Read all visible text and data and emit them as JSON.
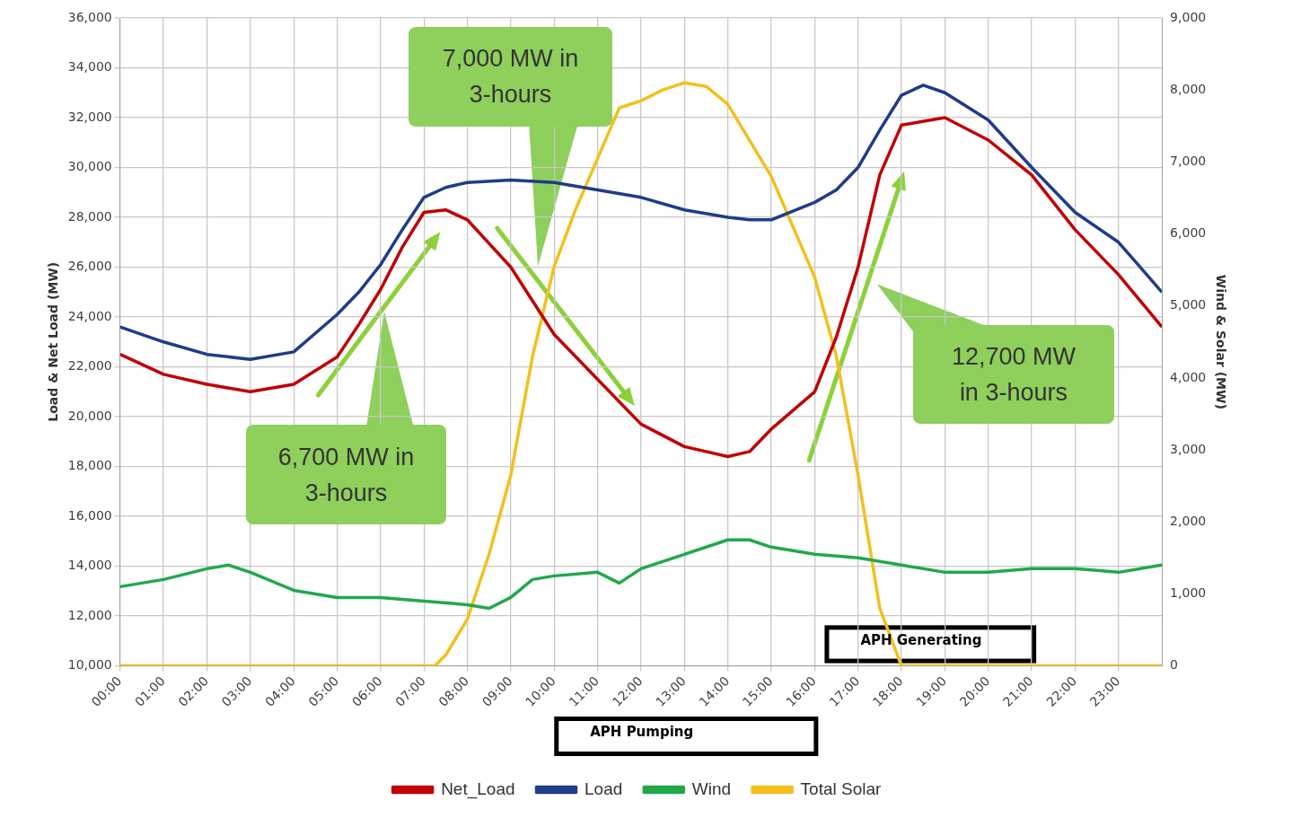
{
  "chart_data": {
    "type": "line",
    "ylabel": "Load & Net Load (MW)",
    "y2label": "Wind & Solar (MW)",
    "xlim": [
      0,
      24
    ],
    "xticks": [
      {
        "value": 0,
        "label": "00:00"
      },
      {
        "value": 1,
        "label": "01:00"
      },
      {
        "value": 2,
        "label": "02:00"
      },
      {
        "value": 3,
        "label": "03:00"
      },
      {
        "value": 4,
        "label": "04:00"
      },
      {
        "value": 5,
        "label": "05:00"
      },
      {
        "value": 6,
        "label": "06:00"
      },
      {
        "value": 7,
        "label": "07:00"
      },
      {
        "value": 8,
        "label": "08:00"
      },
      {
        "value": 9,
        "label": "09:00"
      },
      {
        "value": 10,
        "label": "10:00"
      },
      {
        "value": 11,
        "label": "11:00"
      },
      {
        "value": 12,
        "label": "12:00"
      },
      {
        "value": 13,
        "label": "13:00"
      },
      {
        "value": 14,
        "label": "14:00"
      },
      {
        "value": 15,
        "label": "15:00"
      },
      {
        "value": 16,
        "label": "16:00"
      },
      {
        "value": 17,
        "label": "17:00"
      },
      {
        "value": 18,
        "label": "18:00"
      },
      {
        "value": 19,
        "label": "19:00"
      },
      {
        "value": 20,
        "label": "20:00"
      },
      {
        "value": 21,
        "label": "21:00"
      },
      {
        "value": 22,
        "label": "22:00"
      },
      {
        "value": 23,
        "label": "23:00"
      }
    ],
    "ylim": [
      10000,
      36000
    ],
    "yticks": [
      {
        "value": 10000,
        "label": "10,000"
      },
      {
        "value": 12000,
        "label": "12,000"
      },
      {
        "value": 14000,
        "label": "14,000"
      },
      {
        "value": 16000,
        "label": "16,000"
      },
      {
        "value": 18000,
        "label": "18,000"
      },
      {
        "value": 20000,
        "label": "20,000"
      },
      {
        "value": 22000,
        "label": "22,000"
      },
      {
        "value": 24000,
        "label": "24,000"
      },
      {
        "value": 26000,
        "label": "26,000"
      },
      {
        "value": 28000,
        "label": "28,000"
      },
      {
        "value": 30000,
        "label": "30,000"
      },
      {
        "value": 32000,
        "label": "32,000"
      },
      {
        "value": 34000,
        "label": "34,000"
      },
      {
        "value": 36000,
        "label": "36,000"
      }
    ],
    "y2lim": [
      0,
      9000
    ],
    "y2ticks": [
      0,
      {
        "value": 1000,
        "label": "1,000"
      },
      {
        "value": 2000,
        "label": "2,000"
      },
      {
        "value": 3000,
        "label": "3,000"
      },
      {
        "value": 4000,
        "label": "4,000"
      },
      {
        "value": 5000,
        "label": "5,000"
      },
      {
        "value": 6000,
        "label": "6,000"
      },
      {
        "value": 7000,
        "label": "7,000"
      },
      {
        "value": 8000,
        "label": "8,000"
      },
      {
        "value": 9000,
        "label": "9,000"
      }
    ],
    "grid": true,
    "legend": "bottom",
    "marker": "none",
    "line_style": "solid",
    "series": [
      {
        "name": "Net_Load",
        "color": "#c00000",
        "x": [
          0,
          1,
          2,
          3,
          4,
          5,
          5.5,
          6,
          6.5,
          7,
          7.5,
          8,
          9,
          10,
          11,
          12,
          13,
          14,
          14.5,
          15,
          16,
          16.5,
          17,
          17.5,
          18,
          19,
          20,
          21,
          22,
          23,
          24
        ],
        "values": [
          22500,
          21700,
          21300,
          21000,
          21300,
          22400,
          23700,
          25100,
          26800,
          28200,
          28300,
          27900,
          26000,
          23300,
          21500,
          19700,
          18800,
          18400,
          18600,
          19500,
          21000,
          23200,
          26000,
          29700,
          31700,
          32000,
          31100,
          29700,
          27500,
          25700,
          23600
        ]
      },
      {
        "name": "Load",
        "color": "#1f3c88",
        "x": [
          0,
          1,
          2,
          3,
          4,
          5,
          5.5,
          6,
          6.5,
          7,
          7.5,
          8,
          9,
          10,
          11,
          12,
          13,
          14,
          14.5,
          15,
          16,
          16.5,
          17,
          17.5,
          18,
          18.5,
          19,
          20,
          21,
          22,
          23,
          24
        ],
        "values": [
          23600,
          23000,
          22500,
          22300,
          22600,
          24100,
          25000,
          26100,
          27500,
          28800,
          29200,
          29400,
          29500,
          29400,
          29100,
          28800,
          28300,
          28000,
          27900,
          27900,
          28600,
          29100,
          30000,
          31500,
          32900,
          33300,
          33000,
          31900,
          30000,
          28200,
          27000,
          25000
        ]
      },
      {
        "name": "Wind",
        "color": "#22a84a",
        "axis": "y2",
        "x": [
          0,
          1,
          2,
          2.5,
          3,
          4,
          5,
          6,
          7,
          8,
          8.5,
          9,
          9.5,
          10,
          11,
          11.5,
          12,
          13,
          14,
          14.5,
          15,
          16,
          17,
          18,
          19,
          20,
          21,
          22,
          23,
          24
        ],
        "values": [
          1100,
          1200,
          1350,
          1400,
          1300,
          1050,
          950,
          950,
          900,
          850,
          800,
          950,
          1200,
          1250,
          1300,
          1150,
          1350,
          1550,
          1750,
          1750,
          1650,
          1550,
          1500,
          1400,
          1300,
          1300,
          1350,
          1350,
          1300,
          1400
        ]
      },
      {
        "name": "Total Solar",
        "color": "#f2c01e",
        "axis": "y2",
        "x": [
          0,
          7.25,
          7.5,
          8,
          8.5,
          9,
          9.5,
          10,
          10.5,
          11,
          11.5,
          12,
          12.5,
          13,
          13.5,
          14,
          14.5,
          15,
          15.5,
          16,
          16.5,
          17,
          17.5,
          18,
          24
        ],
        "values": [
          0,
          0,
          150,
          650,
          1550,
          2650,
          4300,
          5550,
          6350,
          7050,
          7750,
          7850,
          8000,
          8100,
          8050,
          7800,
          7300,
          6800,
          6100,
          5400,
          4300,
          2650,
          800,
          0,
          0
        ]
      }
    ],
    "annotations": [
      "7,000 MW in 3-hours",
      "6,700 MW in 3-hours",
      "12,700 MW in 3-hours",
      "APH Pumping",
      "APH Generating"
    ]
  }
}
